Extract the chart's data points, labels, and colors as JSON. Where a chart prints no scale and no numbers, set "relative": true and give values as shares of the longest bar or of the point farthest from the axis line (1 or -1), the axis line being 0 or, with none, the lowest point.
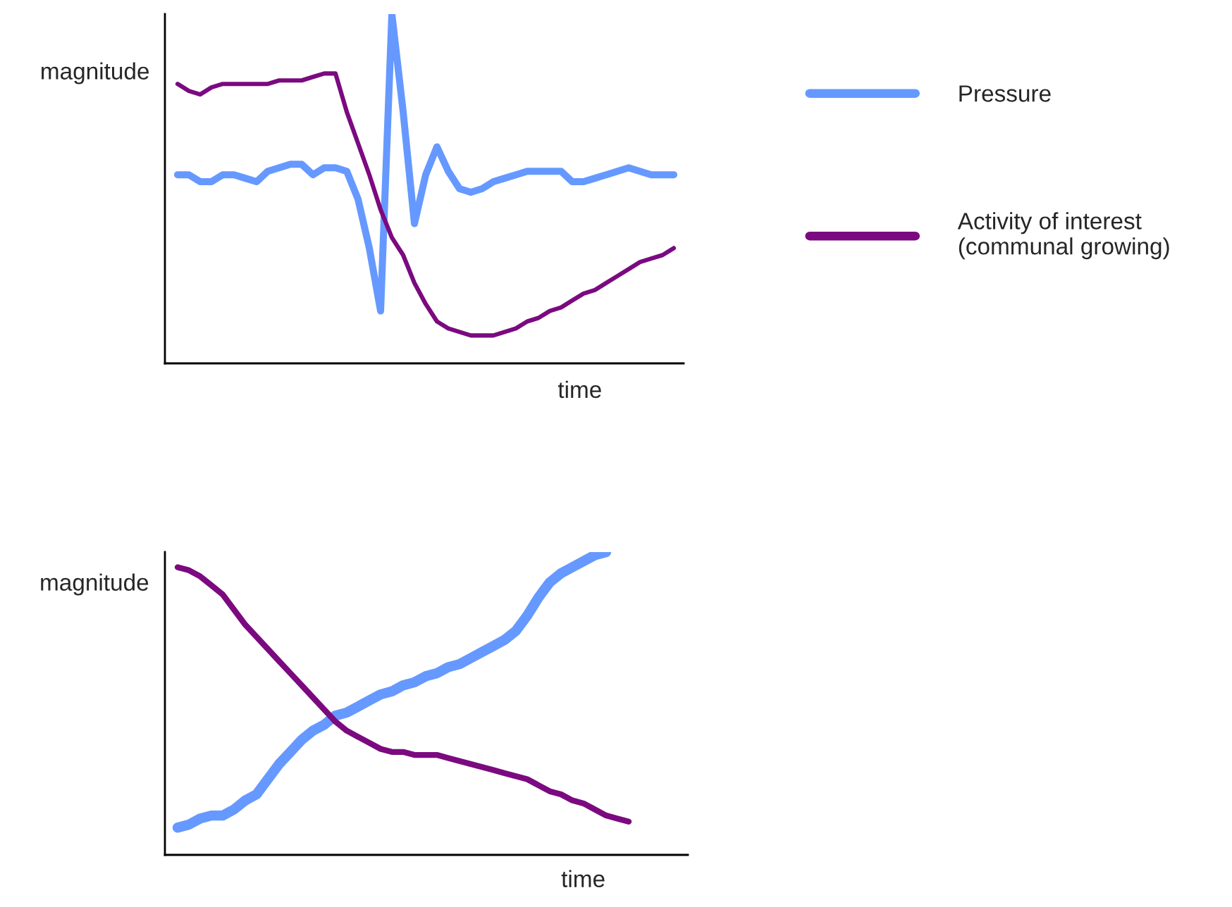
{
  "chart_data": [
    {
      "type": "line",
      "relative": true,
      "ylabel": "magnitude",
      "xlabel": "time",
      "legend": "right",
      "categories": [
        null,
        null,
        null,
        null,
        null,
        null,
        null,
        null,
        null,
        null,
        null,
        null,
        null,
        null,
        null,
        null,
        null,
        null,
        null,
        null,
        null,
        null,
        null,
        null,
        null,
        null,
        null,
        null,
        null,
        null,
        null,
        null,
        null,
        null,
        null,
        null,
        null,
        null,
        null,
        null,
        null,
        null,
        null,
        null,
        null
      ],
      "series": [
        {
          "name": "Pressure",
          "color": "#6699ff",
          "values": [
            0.54,
            0.54,
            0.52,
            0.52,
            0.54,
            0.54,
            0.53,
            0.52,
            0.55,
            0.56,
            0.57,
            0.57,
            0.54,
            0.56,
            0.56,
            0.55,
            0.47,
            0.33,
            0.15,
            1.0,
            0.72,
            0.4,
            0.54,
            0.62,
            0.55,
            0.5,
            0.49,
            0.5,
            0.52,
            0.53,
            0.54,
            0.55,
            0.55,
            0.55,
            0.55,
            0.52,
            0.52,
            0.53,
            0.54,
            0.55,
            0.56,
            0.55,
            0.54,
            0.54,
            0.54
          ]
        },
        {
          "name": "Activity of interest\n(communal growing)",
          "color": "#7b0a80",
          "values": [
            0.8,
            0.78,
            0.77,
            0.79,
            0.8,
            0.8,
            0.8,
            0.8,
            0.8,
            0.81,
            0.81,
            0.81,
            0.82,
            0.83,
            0.83,
            0.72,
            0.63,
            0.54,
            0.44,
            0.36,
            0.31,
            0.23,
            0.17,
            0.12,
            0.1,
            0.09,
            0.08,
            0.08,
            0.08,
            0.09,
            0.1,
            0.12,
            0.13,
            0.15,
            0.16,
            0.18,
            0.2,
            0.21,
            0.23,
            0.25,
            0.27,
            0.29,
            0.3,
            0.31,
            0.33
          ]
        }
      ]
    },
    {
      "type": "line",
      "relative": true,
      "ylabel": "magnitude",
      "xlabel": "time",
      "categories": [
        null,
        null,
        null,
        null,
        null,
        null,
        null,
        null,
        null,
        null,
        null,
        null,
        null,
        null,
        null,
        null,
        null,
        null,
        null,
        null,
        null,
        null,
        null,
        null,
        null,
        null,
        null,
        null,
        null,
        null,
        null,
        null,
        null,
        null,
        null,
        null,
        null,
        null,
        null,
        null,
        null
      ],
      "series": [
        {
          "color": "#6699ff",
          "values": [
            0.09,
            0.1,
            0.12,
            0.13,
            0.13,
            0.15,
            0.18,
            0.2,
            0.25,
            0.3,
            0.34,
            0.38,
            0.41,
            0.43,
            0.46,
            0.47,
            0.49,
            0.51,
            0.53,
            0.54,
            0.56,
            0.57,
            0.59,
            0.6,
            0.62,
            0.63,
            0.65,
            0.67,
            0.69,
            0.71,
            0.74,
            0.79,
            0.85,
            0.9,
            0.93,
            0.95,
            0.97,
            0.99,
            1.0,
            null,
            null
          ]
        },
        {
          "color": "#7b0a80",
          "values": [
            0.95,
            0.94,
            0.92,
            0.89,
            0.86,
            0.81,
            0.76,
            0.72,
            0.68,
            0.64,
            0.6,
            0.56,
            0.52,
            0.48,
            0.44,
            0.41,
            0.39,
            0.37,
            0.35,
            0.34,
            0.34,
            0.33,
            0.33,
            0.33,
            0.32,
            0.31,
            0.3,
            0.29,
            0.28,
            0.27,
            0.26,
            0.25,
            0.23,
            0.21,
            0.2,
            0.18,
            0.17,
            0.15,
            0.13,
            0.12,
            0.11
          ]
        }
      ]
    }
  ]
}
